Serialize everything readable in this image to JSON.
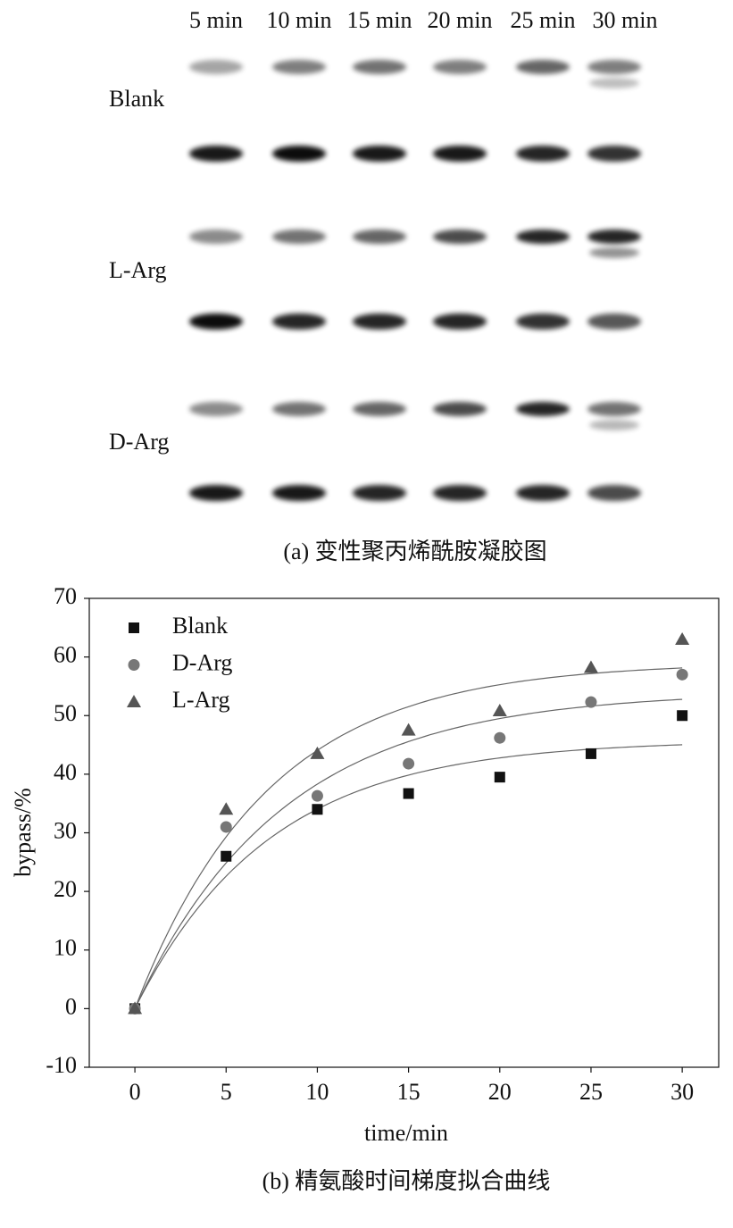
{
  "gel": {
    "columns": [
      "5 min",
      "10 min",
      "15 min",
      "20 min",
      "25 min",
      "30 min"
    ],
    "rows": [
      "Blank",
      "L-Arg",
      "D-Arg"
    ],
    "caption": "(a) 变性聚丙烯酰胺凝胶图"
  },
  "chart_data": {
    "type": "scatter",
    "caption": "(b) 精氨酸时间梯度拟合曲线",
    "x_label": "time/min",
    "y_label": "bypass/%",
    "x": [
      0,
      5,
      10,
      15,
      20,
      25,
      30
    ],
    "series": [
      {
        "name": "Blank",
        "color": "#111111",
        "marker": "square",
        "values": [
          0,
          26,
          34,
          36.7,
          39.5,
          43.5,
          50
        ]
      },
      {
        "name": "D-Arg",
        "color": "#777777",
        "marker": "circle",
        "values": [
          0,
          31,
          36.3,
          41.8,
          46.2,
          52.3,
          57
        ]
      },
      {
        "name": "L-Arg",
        "color": "#555555",
        "marker": "triangle",
        "values": [
          0,
          34,
          43.5,
          47.5,
          50.8,
          58.2,
          63
        ]
      }
    ],
    "xlim": [
      -2.5,
      32
    ],
    "ylim": [
      -10,
      70
    ],
    "xticks": [
      0,
      5,
      10,
      15,
      20,
      25,
      30
    ],
    "yticks": [
      -10,
      0,
      10,
      20,
      30,
      40,
      50,
      60,
      70
    ],
    "trendline": true,
    "legend": "upper left"
  }
}
